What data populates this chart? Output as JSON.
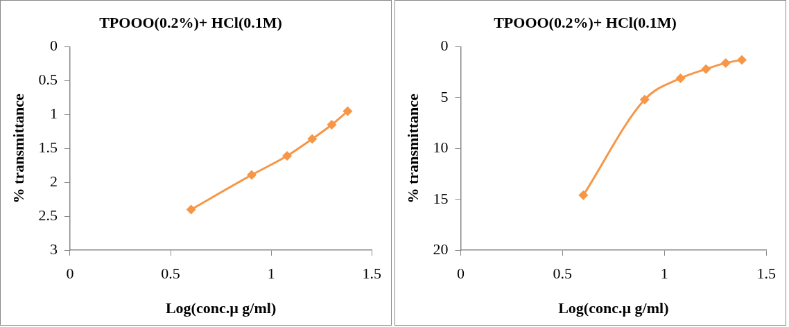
{
  "chart_data": [
    {
      "type": "line",
      "title": "TPOOO(0.2%)+ HCl(0.1M)",
      "xlabel": "Log(conc.µ g/ml)",
      "ylabel": "% transmittance",
      "marker": "diamond",
      "legend": false,
      "grid": false,
      "x": [
        0.602,
        0.903,
        1.079,
        1.204,
        1.301,
        1.38
      ],
      "series": [
        {
          "color": "#f79646",
          "values": [
            2.4,
            1.89,
            1.61,
            1.36,
            1.15,
            0.95
          ]
        }
      ],
      "xlim": [
        0,
        1.5
      ],
      "xticks": [
        0,
        0.5,
        1,
        1.5
      ],
      "ylim": [
        3,
        0
      ],
      "yticks": [
        0,
        0.5,
        1,
        1.5,
        2,
        2.5,
        3
      ]
    },
    {
      "type": "line",
      "title": "TPOOO(0.2%)+ HCl(0.1M)",
      "xlabel": "Log(conc.µ g/ml)",
      "ylabel": "% transmittance",
      "marker": "diamond",
      "legend": false,
      "grid": false,
      "x": [
        0.602,
        0.903,
        1.079,
        1.204,
        1.301,
        1.38
      ],
      "series": [
        {
          "color": "#f79646",
          "values": [
            14.6,
            5.2,
            3.1,
            2.2,
            1.6,
            1.3
          ]
        }
      ],
      "xlim": [
        0,
        1.5
      ],
      "xticks": [
        0,
        0.5,
        1,
        1.5
      ],
      "ylim": [
        20,
        0
      ],
      "yticks": [
        0,
        5,
        10,
        15,
        20
      ]
    }
  ]
}
